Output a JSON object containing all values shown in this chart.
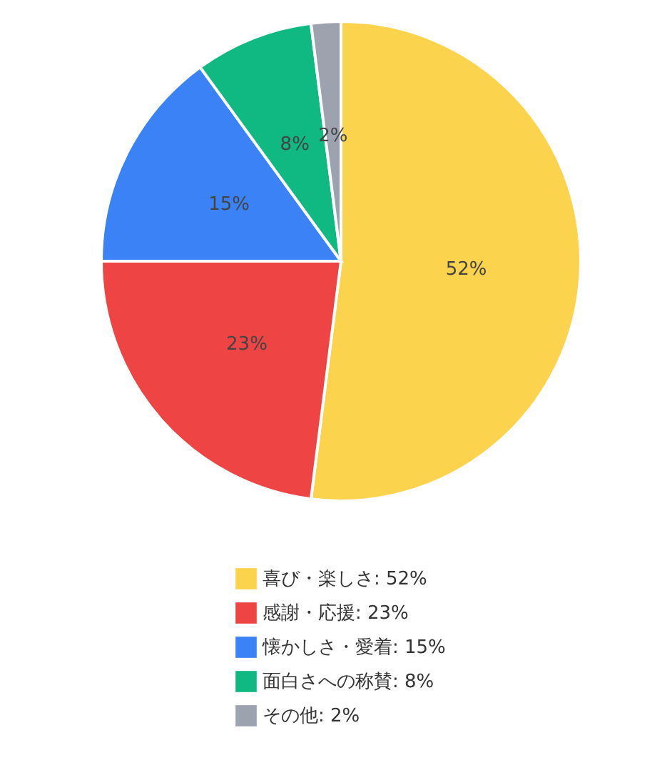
{
  "chart_data": {
    "type": "pie",
    "categories": [
      "喜び・楽しさ: 52%",
      "感謝・応援: 23%",
      "懐かしさ・愛着: 15%",
      "面白さへの称賛: 8%",
      "その他: 2%"
    ],
    "values": [
      52,
      23,
      15,
      8,
      2
    ],
    "value_labels": [
      "52%",
      "23%",
      "15%",
      "8%",
      "2%"
    ],
    "colors": [
      "#fcd34d",
      "#ef4444",
      "#3b82f6",
      "#10b981",
      "#9ca3af"
    ],
    "legend": "bottom"
  }
}
